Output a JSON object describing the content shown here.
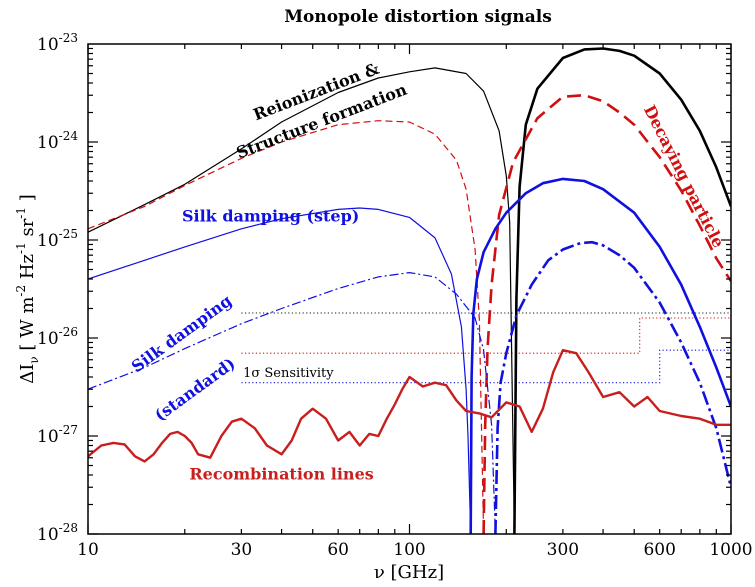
{
  "chart_data": {
    "type": "line",
    "title": "Monopole distortion signals",
    "xlabel": "ν [GHz]",
    "ylabel_parts": {
      "delta": "ΔI",
      "nu": "ν",
      "unit_open": "[ W m",
      "exp_m": "-2",
      "hz": " Hz",
      "exp_hz": "-1",
      "sr": " sr",
      "exp_sr": "-1",
      "close": " ]"
    },
    "x_scale": "log",
    "y_scale": "log",
    "xlim": [
      10,
      1000
    ],
    "ylim": [
      1e-28,
      1e-23
    ],
    "x_ticks": [
      {
        "value": 10,
        "label": "10"
      },
      {
        "value": 30,
        "label": "30"
      },
      {
        "value": 60,
        "label": "60"
      },
      {
        "value": 100,
        "label": "100"
      },
      {
        "value": 300,
        "label": "300"
      },
      {
        "value": 600,
        "label": "600"
      },
      {
        "value": 1000,
        "label": "1000"
      }
    ],
    "y_ticks": [
      {
        "value": 1e-23,
        "base": "10",
        "exp": "-23"
      },
      {
        "value": 1e-24,
        "base": "10",
        "exp": "-24"
      },
      {
        "value": 1e-25,
        "base": "10",
        "exp": "-25"
      },
      {
        "value": 1e-26,
        "base": "10",
        "exp": "-26"
      },
      {
        "value": 1e-27,
        "base": "10",
        "exp": "-27"
      },
      {
        "value": 1e-28,
        "base": "10",
        "exp": "-28"
      }
    ],
    "colors": {
      "black": "#000000",
      "red": "#d01010",
      "blue": "#1010e0",
      "redline": "#c81e1e"
    },
    "series": [
      {
        "id": "reion-thin",
        "color": "#000000",
        "width": 1.2,
        "dash": "",
        "x": [
          10,
          15,
          20,
          30,
          40,
          60,
          80,
          100,
          120,
          150,
          170,
          190,
          200,
          205,
          212
        ],
        "y": [
          1.2e-25,
          2.3e-25,
          3.7e-25,
          8.5e-25,
          1.6e-24,
          3.2e-24,
          4.5e-24,
          5.2e-24,
          5.7e-24,
          5e-24,
          3.3e-24,
          1.3e-24,
          4.5e-25,
          1.5e-25,
          1e-28
        ]
      },
      {
        "id": "reion-thick",
        "color": "#000000",
        "width": 2.6,
        "dash": "",
        "x": [
          212,
          215,
          220,
          230,
          250,
          300,
          350,
          400,
          450,
          500,
          600,
          700,
          800,
          900,
          1000
        ],
        "y": [
          1e-28,
          2.5e-26,
          3.5e-25,
          1.5e-24,
          3.5e-24,
          7.2e-24,
          8.8e-24,
          9e-24,
          8.5e-24,
          7.6e-24,
          5e-24,
          2.7e-24,
          1.3e-24,
          5.5e-25,
          2.2e-25
        ]
      },
      {
        "id": "decay-thin",
        "color": "#d01010",
        "width": 1.2,
        "dash": "7,4",
        "x": [
          10,
          15,
          20,
          30,
          40,
          60,
          80,
          100,
          120,
          140,
          150,
          160,
          165,
          170
        ],
        "y": [
          1.3e-25,
          2.2e-25,
          3.6e-25,
          6.8e-25,
          1e-24,
          1.5e-24,
          1.65e-24,
          1.6e-24,
          1.2e-24,
          6.5e-25,
          3.3e-25,
          8e-26,
          1.5e-26,
          1e-28
        ]
      },
      {
        "id": "decay-thick",
        "color": "#d01010",
        "width": 2.6,
        "dash": "14,7",
        "x": [
          170,
          172,
          175,
          180,
          190,
          210,
          250,
          300,
          350,
          400,
          450,
          500,
          600,
          700,
          800,
          900,
          1000
        ],
        "y": [
          1e-28,
          1.3e-27,
          8e-27,
          3.5e-26,
          1.8e-25,
          6.2e-25,
          1.75e-24,
          2.9e-24,
          3e-24,
          2.6e-24,
          2e-24,
          1.5e-24,
          7e-25,
          3.2e-25,
          1.4e-25,
          6.5e-26,
          3.8e-26
        ]
      },
      {
        "id": "silk-step-thin",
        "color": "#1010e0",
        "width": 1.2,
        "dash": "",
        "x": [
          10,
          15,
          20,
          30,
          40,
          60,
          70,
          80,
          100,
          120,
          135,
          145,
          150,
          152,
          155
        ],
        "y": [
          4e-26,
          6.2e-26,
          8.5e-26,
          1.3e-25,
          1.65e-25,
          2.05e-25,
          2.12e-25,
          2.05e-25,
          1.7e-25,
          1.05e-25,
          4.5e-26,
          1.3e-26,
          3e-27,
          1e-27,
          1e-28
        ]
      },
      {
        "id": "silk-step-thick",
        "color": "#1010e0",
        "width": 2.6,
        "dash": "",
        "x": [
          155,
          156,
          158,
          162,
          170,
          185,
          200,
          230,
          260,
          300,
          350,
          400,
          500,
          600,
          700,
          800,
          900,
          1000
        ],
        "y": [
          1e-28,
          4e-27,
          1.8e-26,
          4e-26,
          7.5e-26,
          1.3e-25,
          1.9e-25,
          3e-25,
          3.8e-25,
          4.2e-25,
          4e-25,
          3.3e-25,
          1.9e-25,
          8.5e-26,
          3.5e-26,
          1.3e-26,
          5e-27,
          2e-27
        ]
      },
      {
        "id": "silk-std-thin",
        "color": "#1010e0",
        "width": 1.2,
        "dash": "9,3,2,3",
        "x": [
          10,
          15,
          20,
          30,
          40,
          60,
          80,
          100,
          120,
          140,
          160,
          170,
          180,
          185
        ],
        "y": [
          3e-27,
          5e-27,
          7.8e-27,
          1.4e-26,
          2e-26,
          3.2e-26,
          4.2e-26,
          4.65e-26,
          4.2e-26,
          2.8e-26,
          1.6e-26,
          7.5e-27,
          1.3e-27,
          1e-28
        ]
      },
      {
        "id": "silk-std-thick",
        "color": "#1010e0",
        "width": 2.6,
        "dash": "14,4,3,4",
        "x": [
          185,
          188,
          192,
          200,
          215,
          240,
          270,
          300,
          340,
          370,
          400,
          450,
          500,
          600,
          700,
          800,
          900,
          1000
        ],
        "y": [
          1e-28,
          1.2e-27,
          3.5e-27,
          7e-27,
          1.7e-26,
          3.5e-26,
          6.2e-26,
          8e-26,
          9.3e-26,
          9.5e-26,
          8.8e-26,
          7e-26,
          5.2e-26,
          2.3e-26,
          9e-27,
          3.5e-27,
          1.2e-27,
          3e-28
        ]
      },
      {
        "id": "recombination",
        "color": "#c81e1e",
        "width": 2.4,
        "dash": "",
        "x": [
          10,
          11,
          12,
          13,
          14,
          15,
          16,
          17,
          18,
          19,
          20,
          21,
          22,
          24,
          26,
          28,
          30,
          33,
          36,
          40,
          43,
          46,
          50,
          55,
          60,
          65,
          70,
          75,
          80,
          85,
          90,
          95,
          100,
          110,
          120,
          130,
          140,
          150,
          165,
          180,
          200,
          220,
          240,
          260,
          280,
          300,
          330,
          360,
          400,
          450,
          500,
          550,
          600,
          700,
          800,
          900,
          1000
        ],
        "y": [
          6.2e-28,
          8e-28,
          8.5e-28,
          8.2e-28,
          6.2e-28,
          5.5e-28,
          6.5e-28,
          8.5e-28,
          1.05e-27,
          1.1e-27,
          1e-27,
          8.5e-28,
          6.5e-28,
          6e-28,
          1e-27,
          1.4e-27,
          1.5e-27,
          1.2e-27,
          8e-28,
          6.5e-28,
          9e-28,
          1.5e-27,
          1.9e-27,
          1.5e-27,
          9e-28,
          1.1e-27,
          8e-28,
          1.05e-27,
          1e-27,
          1.5e-27,
          2.1e-27,
          3e-27,
          4e-27,
          3.2e-27,
          3.5e-27,
          3.3e-27,
          2.3e-27,
          1.8e-27,
          1.7e-27,
          1.55e-27,
          2.2e-27,
          2e-27,
          1.1e-27,
          1.9e-27,
          4.5e-27,
          7.5e-27,
          7e-27,
          4.5e-27,
          2.5e-27,
          2.8e-27,
          2e-27,
          2.5e-27,
          1.8e-27,
          1.6e-27,
          1.5e-27,
          1.3e-27,
          1.3e-27
        ]
      }
    ],
    "sensitivity_lines": [
      {
        "color": "#1a1a1a",
        "x": [
          30,
          1000
        ],
        "y": [
          1.8e-26,
          1.8e-26
        ]
      },
      {
        "color": "#d01010",
        "x": [
          30,
          520,
          520,
          1000
        ],
        "y": [
          7e-27,
          7e-27,
          1.6e-26,
          1.6e-26
        ]
      },
      {
        "color": "#1010e0",
        "x": [
          30,
          600,
          600,
          1000
        ],
        "y": [
          3.5e-27,
          3.5e-27,
          7.5e-27,
          7.5e-27
        ]
      }
    ],
    "annotations": [
      {
        "id": "reion-1",
        "text": "Reionization &",
        "color": "#000000",
        "x": 52,
        "y": 2.9e-24,
        "rotate": -21
      },
      {
        "id": "reion-2",
        "text": "Structure formation",
        "color": "#000000",
        "x": 54,
        "y": 1.45e-24,
        "rotate": -21
      },
      {
        "id": "silk-step",
        "text": "Silk damping (step)",
        "color": "#1010e0",
        "x": 37,
        "y": 1.55e-25,
        "rotate": 0
      },
      {
        "id": "silk-std-1",
        "text": "Silk damping",
        "color": "#1010e0",
        "x": 20,
        "y": 1e-26,
        "rotate": -36
      },
      {
        "id": "silk-std-2",
        "text": "(standard)",
        "color": "#1010e0",
        "x": 22,
        "y": 2.7e-27,
        "rotate": -36
      },
      {
        "id": "sensitivity",
        "text": "1σ Sensitivity",
        "color": "#000000",
        "x": 42,
        "y": 4e-27,
        "rotate": 0,
        "small": true
      },
      {
        "id": "decaying",
        "text": "Decaying particle",
        "color": "#d01010",
        "x": 690,
        "y": 4.2e-25,
        "rotate": 63
      },
      {
        "id": "recombination",
        "text": "Recombination lines",
        "color": "#c81e1e",
        "x": 40,
        "y": 3.6e-28,
        "rotate": 0
      }
    ]
  }
}
